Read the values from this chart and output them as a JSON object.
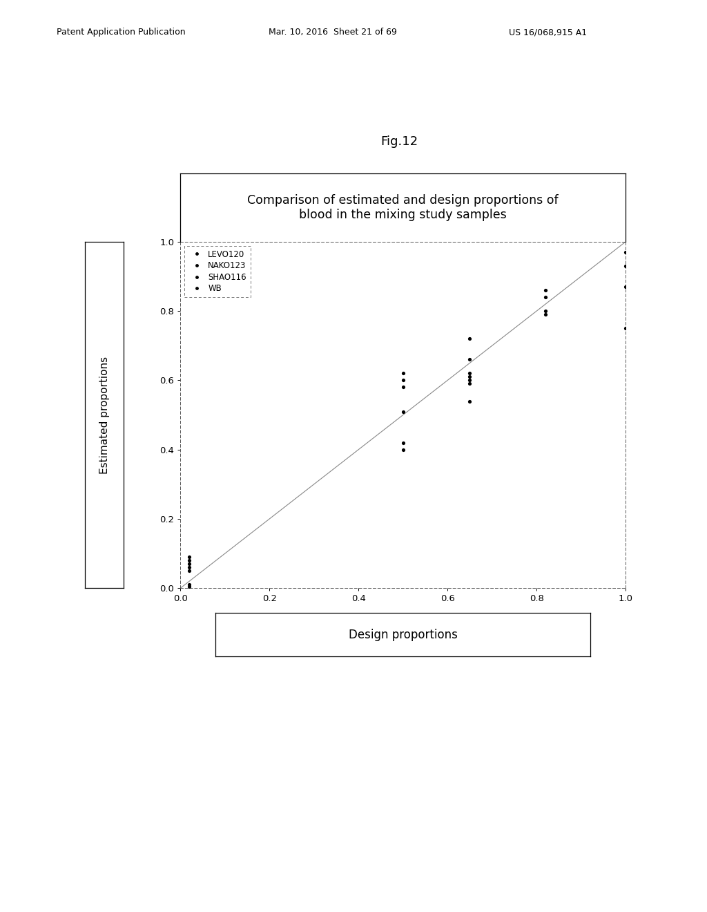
{
  "title": "Comparison of estimated and design proportions of\nblood in the mixing study samples",
  "fig_label": "Fig.12",
  "xlabel": "Design proportions",
  "ylabel": "Estimated proportions",
  "xlim": [
    0.0,
    1.0
  ],
  "ylim": [
    0.0,
    1.0
  ],
  "xticks": [
    0.0,
    0.2,
    0.4,
    0.6,
    0.8,
    1.0
  ],
  "yticks": [
    0.0,
    0.2,
    0.4,
    0.6,
    0.8,
    1.0
  ],
  "legend_labels": [
    "LEVO120",
    "NAKO123",
    "SHAO116",
    "WB"
  ],
  "background_color": "#ffffff",
  "point_color": "#000000",
  "point_size": 14,
  "header_left": "Patent Application Publication",
  "header_mid": "Mar. 10, 2016  Sheet 21 of 69",
  "header_right": "US 16/068,915 A1",
  "data_points": {
    "x": [
      0.02,
      0.02,
      0.02,
      0.02,
      0.02,
      0.02,
      0.02,
      0.5,
      0.5,
      0.5,
      0.5,
      0.5,
      0.5,
      0.65,
      0.65,
      0.65,
      0.65,
      0.65,
      0.65,
      0.65,
      0.82,
      0.82,
      0.82,
      0.82,
      1.0,
      1.0,
      1.0,
      1.0,
      1.0
    ],
    "y": [
      0.09,
      0.08,
      0.07,
      0.06,
      0.05,
      0.01,
      0.005,
      0.62,
      0.6,
      0.58,
      0.51,
      0.42,
      0.4,
      0.72,
      0.66,
      0.62,
      0.61,
      0.6,
      0.59,
      0.54,
      0.86,
      0.84,
      0.8,
      0.79,
      1.01,
      0.97,
      0.93,
      0.87,
      0.75
    ]
  }
}
